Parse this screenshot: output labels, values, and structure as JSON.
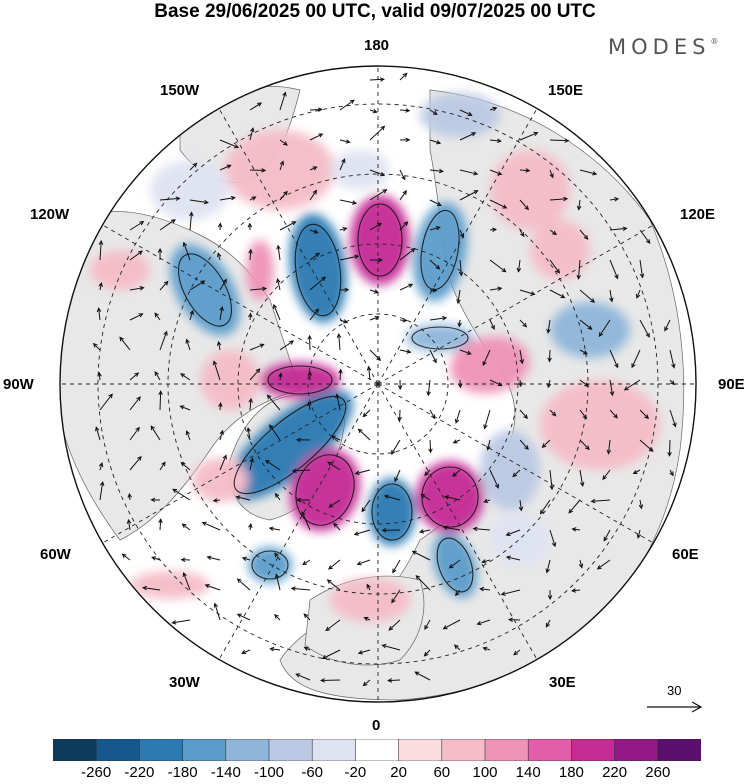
{
  "title": "Base 29/06/2025 00 UTC, valid 09/07/2025 00 UTC",
  "brand": "MODES",
  "brand_mark": "®",
  "map": {
    "projection": "north polar stereographic",
    "meridian_labels": {
      "top": "180",
      "bottom": "0",
      "left": "90W",
      "right": "90E",
      "upper_left_1": "150W",
      "upper_left_2": "120W",
      "upper_right_1": "150E",
      "upper_right_2": "120E",
      "lower_left_1": "60W",
      "lower_left_2": "30W",
      "lower_right_1": "60E",
      "lower_right_2": "30E"
    },
    "reference_vector": "30"
  },
  "colorbar": {
    "ticks": [
      "-260",
      "-220",
      "-180",
      "-140",
      "-100",
      "-60",
      "-20",
      "20",
      "60",
      "100",
      "140",
      "180",
      "220",
      "260"
    ],
    "colors": [
      "#0d3b5e",
      "#15598c",
      "#2c7ab3",
      "#5b9ccb",
      "#8fb6da",
      "#bac9e4",
      "#dfe3f1",
      "#ffffff",
      "#fbdde0",
      "#f5bcc7",
      "#ef93b6",
      "#e35ea8",
      "#c42c95",
      "#931a84",
      "#5b0f6d"
    ]
  },
  "colors": {
    "land": "#e8e8e8",
    "ocean": "#ffffff",
    "coast": "#555555",
    "graticule": "#222222"
  }
}
